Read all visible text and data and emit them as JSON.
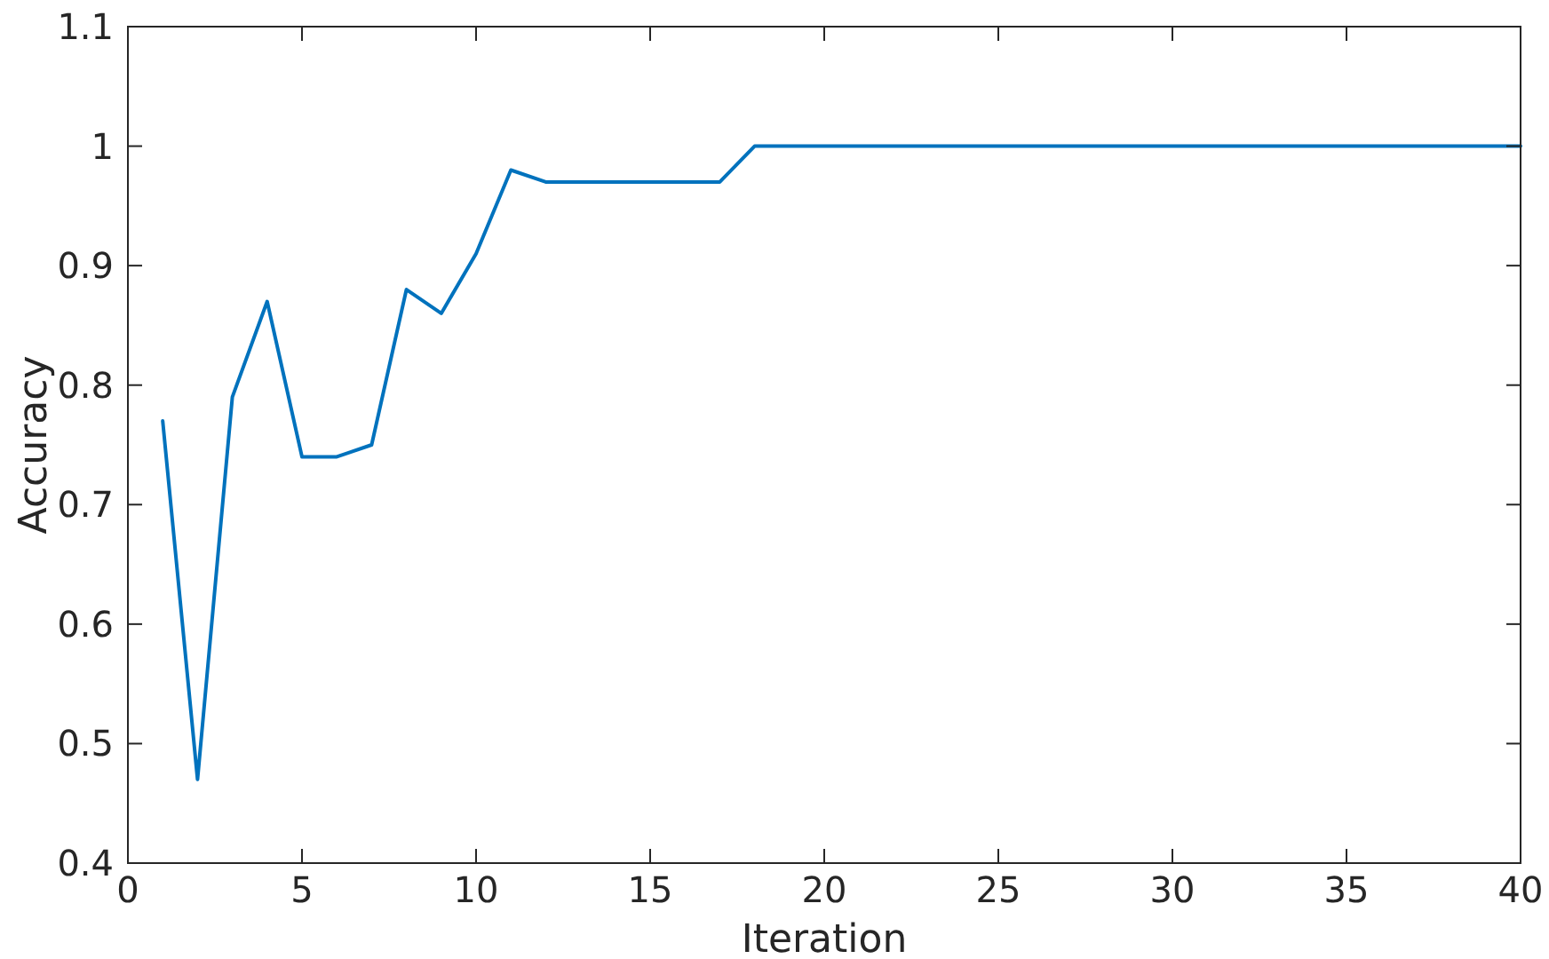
{
  "chart_data": {
    "type": "line",
    "xlabel": "Iteration",
    "ylabel": "Accuracy",
    "x": [
      1,
      2,
      3,
      4,
      5,
      6,
      7,
      8,
      9,
      10,
      11,
      12,
      13,
      14,
      15,
      16,
      17,
      18,
      19,
      20,
      21,
      22,
      23,
      24,
      25,
      26,
      27,
      28,
      29,
      30,
      31,
      32,
      33,
      34,
      35,
      36,
      37,
      38,
      39,
      40
    ],
    "series": [
      {
        "color": "#0072bd",
        "values": [
          0.77,
          0.47,
          0.79,
          0.87,
          0.74,
          0.74,
          0.75,
          0.88,
          0.86,
          0.91,
          0.98,
          0.97,
          0.97,
          0.97,
          0.97,
          0.97,
          0.97,
          1,
          1,
          1,
          1,
          1,
          1,
          1,
          1,
          1,
          1,
          1,
          1,
          1,
          1,
          1,
          1,
          1,
          1,
          1,
          1,
          1,
          1,
          1
        ]
      }
    ],
    "xlim": [
      0,
      40
    ],
    "xticks": [
      0,
      5,
      10,
      15,
      20,
      25,
      30,
      35,
      40
    ],
    "ylim": [
      0.4,
      1.1
    ],
    "yticks": [
      0.4,
      0.5,
      0.6,
      0.7,
      0.8,
      0.9,
      1,
      1.1
    ],
    "grid": false,
    "marker": "none",
    "line_style": "solid"
  }
}
